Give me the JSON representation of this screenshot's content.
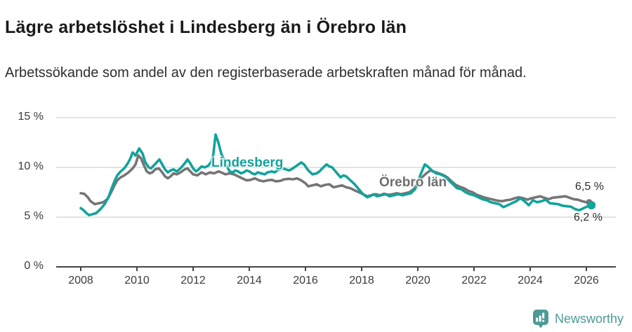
{
  "header": {
    "title": "Lägre arbetslöshet i Lindesberg än i Örebro län",
    "subtitle": "Arbetssökande som andel av den registerbaserade arbetskraften månad för månad."
  },
  "chart_data": {
    "type": "line",
    "title": "Lägre arbetslöshet i Lindesberg än i Örebro län",
    "xlabel": "",
    "ylabel": "",
    "unit": "%",
    "grid": true,
    "x_axis": {
      "ticks": [
        2008,
        2010,
        2012,
        2014,
        2016,
        2018,
        2020,
        2022,
        2024,
        2026
      ],
      "range": [
        2007.1,
        2027.0
      ]
    },
    "y_axis": {
      "ticks": [
        0,
        5,
        10,
        15
      ],
      "tick_labels": [
        "0 %",
        "5 %",
        "10 %",
        "15 %"
      ],
      "range": [
        0,
        15
      ]
    },
    "colors": {
      "lindesberg": "#12a39b",
      "orebro": "#757575",
      "grid": "#dadada",
      "axis": "#444444",
      "tick_text": "#3c3c3c"
    },
    "series": [
      {
        "name": "Örebro län",
        "color": "#757575",
        "label_color": "#6e6e6e",
        "end_label": "6,5 %",
        "end_value": 6.5,
        "points": [
          [
            2008.0,
            7.4
          ],
          [
            2008.12,
            7.35
          ],
          [
            2008.25,
            7.0
          ],
          [
            2008.35,
            6.6
          ],
          [
            2008.5,
            6.3
          ],
          [
            2008.65,
            6.4
          ],
          [
            2008.8,
            6.5
          ],
          [
            2008.95,
            6.8
          ],
          [
            2009.1,
            7.6
          ],
          [
            2009.2,
            8.2
          ],
          [
            2009.3,
            8.7
          ],
          [
            2009.42,
            9.0
          ],
          [
            2009.55,
            9.2
          ],
          [
            2009.7,
            9.5
          ],
          [
            2009.85,
            9.9
          ],
          [
            2009.95,
            10.3
          ],
          [
            2010.05,
            11.2
          ],
          [
            2010.15,
            10.9
          ],
          [
            2010.25,
            10.2
          ],
          [
            2010.35,
            9.6
          ],
          [
            2010.45,
            9.4
          ],
          [
            2010.55,
            9.5
          ],
          [
            2010.65,
            9.8
          ],
          [
            2010.78,
            9.9
          ],
          [
            2010.9,
            9.5
          ],
          [
            2011.0,
            9.1
          ],
          [
            2011.1,
            8.9
          ],
          [
            2011.2,
            9.1
          ],
          [
            2011.3,
            9.4
          ],
          [
            2011.42,
            9.3
          ],
          [
            2011.55,
            9.5
          ],
          [
            2011.7,
            9.8
          ],
          [
            2011.8,
            9.9
          ],
          [
            2011.9,
            9.6
          ],
          [
            2012.0,
            9.3
          ],
          [
            2012.15,
            9.2
          ],
          [
            2012.3,
            9.5
          ],
          [
            2012.45,
            9.3
          ],
          [
            2012.6,
            9.5
          ],
          [
            2012.75,
            9.4
          ],
          [
            2012.9,
            9.6
          ],
          [
            2013.0,
            9.5
          ],
          [
            2013.15,
            9.3
          ],
          [
            2013.3,
            9.4
          ],
          [
            2013.45,
            9.3
          ],
          [
            2013.6,
            9.1
          ],
          [
            2013.75,
            8.9
          ],
          [
            2013.9,
            8.7
          ],
          [
            2014.05,
            8.75
          ],
          [
            2014.2,
            8.9
          ],
          [
            2014.35,
            8.7
          ],
          [
            2014.5,
            8.6
          ],
          [
            2014.65,
            8.7
          ],
          [
            2014.8,
            8.75
          ],
          [
            2014.95,
            8.6
          ],
          [
            2015.1,
            8.65
          ],
          [
            2015.25,
            8.8
          ],
          [
            2015.4,
            8.85
          ],
          [
            2015.55,
            8.8
          ],
          [
            2015.7,
            8.9
          ],
          [
            2015.85,
            8.7
          ],
          [
            2016.0,
            8.4
          ],
          [
            2016.1,
            8.1
          ],
          [
            2016.25,
            8.2
          ],
          [
            2016.4,
            8.3
          ],
          [
            2016.55,
            8.1
          ],
          [
            2016.7,
            8.25
          ],
          [
            2016.85,
            8.3
          ],
          [
            2017.0,
            8.0
          ],
          [
            2017.15,
            8.1
          ],
          [
            2017.3,
            8.2
          ],
          [
            2017.45,
            8.0
          ],
          [
            2017.6,
            7.9
          ],
          [
            2017.75,
            7.7
          ],
          [
            2017.9,
            7.5
          ],
          [
            2018.05,
            7.3
          ],
          [
            2018.2,
            7.1
          ],
          [
            2018.35,
            7.2
          ],
          [
            2018.5,
            7.3
          ],
          [
            2018.65,
            7.2
          ],
          [
            2018.8,
            7.35
          ],
          [
            2018.95,
            7.25
          ],
          [
            2019.1,
            7.3
          ],
          [
            2019.25,
            7.4
          ],
          [
            2019.4,
            7.3
          ],
          [
            2019.55,
            7.4
          ],
          [
            2019.7,
            7.5
          ],
          [
            2019.85,
            7.8
          ],
          [
            2020.0,
            8.4
          ],
          [
            2020.15,
            9.0
          ],
          [
            2020.3,
            9.4
          ],
          [
            2020.45,
            9.7
          ],
          [
            2020.6,
            9.55
          ],
          [
            2020.75,
            9.4
          ],
          [
            2020.9,
            9.25
          ],
          [
            2021.05,
            9.0
          ],
          [
            2021.2,
            8.6
          ],
          [
            2021.35,
            8.25
          ],
          [
            2021.5,
            8.05
          ],
          [
            2021.65,
            7.9
          ],
          [
            2021.8,
            7.65
          ],
          [
            2021.95,
            7.5
          ],
          [
            2022.1,
            7.25
          ],
          [
            2022.25,
            7.1
          ],
          [
            2022.4,
            6.95
          ],
          [
            2022.55,
            6.85
          ],
          [
            2022.7,
            6.75
          ],
          [
            2022.85,
            6.65
          ],
          [
            2023.0,
            6.6
          ],
          [
            2023.15,
            6.7
          ],
          [
            2023.3,
            6.75
          ],
          [
            2023.45,
            6.9
          ],
          [
            2023.6,
            7.0
          ],
          [
            2023.75,
            6.9
          ],
          [
            2023.9,
            6.75
          ],
          [
            2024.05,
            6.9
          ],
          [
            2024.2,
            7.0
          ],
          [
            2024.35,
            7.1
          ],
          [
            2024.5,
            6.95
          ],
          [
            2024.65,
            6.8
          ],
          [
            2024.8,
            6.95
          ],
          [
            2024.95,
            7.0
          ],
          [
            2025.1,
            7.05
          ],
          [
            2025.25,
            7.1
          ],
          [
            2025.4,
            6.95
          ],
          [
            2025.55,
            6.8
          ],
          [
            2025.7,
            6.75
          ],
          [
            2025.85,
            6.6
          ],
          [
            2026.0,
            6.5
          ],
          [
            2026.1,
            6.5
          ]
        ]
      },
      {
        "name": "Lindesberg",
        "color": "#12a39b",
        "label_color": "#12a39b",
        "end_label": "6,2 %",
        "end_value": 6.2,
        "points": [
          [
            2008.0,
            5.9
          ],
          [
            2008.1,
            5.7
          ],
          [
            2008.2,
            5.4
          ],
          [
            2008.3,
            5.2
          ],
          [
            2008.42,
            5.3
          ],
          [
            2008.55,
            5.4
          ],
          [
            2008.7,
            5.8
          ],
          [
            2008.85,
            6.3
          ],
          [
            2009.0,
            7.1
          ],
          [
            2009.1,
            7.9
          ],
          [
            2009.2,
            8.6
          ],
          [
            2009.3,
            9.2
          ],
          [
            2009.42,
            9.6
          ],
          [
            2009.55,
            9.9
          ],
          [
            2009.65,
            10.3
          ],
          [
            2009.75,
            10.8
          ],
          [
            2009.85,
            11.5
          ],
          [
            2009.95,
            11.2
          ],
          [
            2010.08,
            11.9
          ],
          [
            2010.2,
            11.4
          ],
          [
            2010.3,
            10.5
          ],
          [
            2010.42,
            10.0
          ],
          [
            2010.5,
            9.9
          ],
          [
            2010.6,
            10.2
          ],
          [
            2010.7,
            10.5
          ],
          [
            2010.8,
            10.8
          ],
          [
            2010.9,
            10.3
          ],
          [
            2011.0,
            9.8
          ],
          [
            2011.1,
            9.5
          ],
          [
            2011.2,
            9.7
          ],
          [
            2011.3,
            9.8
          ],
          [
            2011.42,
            9.6
          ],
          [
            2011.55,
            9.9
          ],
          [
            2011.7,
            10.4
          ],
          [
            2011.8,
            10.8
          ],
          [
            2011.9,
            10.4
          ],
          [
            2012.0,
            9.9
          ],
          [
            2012.1,
            9.6
          ],
          [
            2012.2,
            9.8
          ],
          [
            2012.3,
            10.1
          ],
          [
            2012.42,
            10.0
          ],
          [
            2012.55,
            10.2
          ],
          [
            2012.65,
            10.6
          ],
          [
            2012.72,
            11.3
          ],
          [
            2012.8,
            13.3
          ],
          [
            2012.9,
            12.5
          ],
          [
            2013.0,
            11.4
          ],
          [
            2013.05,
            11.1
          ],
          [
            2013.15,
            10.4
          ],
          [
            2013.3,
            9.6
          ],
          [
            2013.42,
            9.5
          ],
          [
            2013.5,
            9.7
          ],
          [
            2013.6,
            9.6
          ],
          [
            2013.7,
            9.4
          ],
          [
            2013.8,
            9.5
          ],
          [
            2013.9,
            9.7
          ],
          [
            2014.0,
            9.6
          ],
          [
            2014.1,
            9.4
          ],
          [
            2014.2,
            9.3
          ],
          [
            2014.3,
            9.5
          ],
          [
            2014.42,
            9.4
          ],
          [
            2014.55,
            9.3
          ],
          [
            2014.65,
            9.5
          ],
          [
            2014.8,
            9.6
          ],
          [
            2014.9,
            9.5
          ],
          [
            2015.0,
            9.7
          ],
          [
            2015.1,
            9.8
          ],
          [
            2015.2,
            9.9
          ],
          [
            2015.3,
            9.8
          ],
          [
            2015.42,
            9.7
          ],
          [
            2015.55,
            9.9
          ],
          [
            2015.7,
            10.2
          ],
          [
            2015.85,
            10.5
          ],
          [
            2015.95,
            10.3
          ],
          [
            2016.1,
            9.7
          ],
          [
            2016.25,
            9.3
          ],
          [
            2016.4,
            9.4
          ],
          [
            2016.5,
            9.6
          ],
          [
            2016.6,
            9.9
          ],
          [
            2016.75,
            10.3
          ],
          [
            2016.85,
            10.1
          ],
          [
            2016.95,
            10.0
          ],
          [
            2017.1,
            9.5
          ],
          [
            2017.25,
            9.0
          ],
          [
            2017.35,
            9.2
          ],
          [
            2017.45,
            9.1
          ],
          [
            2017.6,
            8.7
          ],
          [
            2017.75,
            8.3
          ],
          [
            2017.9,
            7.8
          ],
          [
            2018.05,
            7.3
          ],
          [
            2018.2,
            7.0
          ],
          [
            2018.3,
            7.1
          ],
          [
            2018.42,
            7.3
          ],
          [
            2018.55,
            7.1
          ],
          [
            2018.7,
            7.2
          ],
          [
            2018.85,
            7.3
          ],
          [
            2019.0,
            7.1
          ],
          [
            2019.15,
            7.2
          ],
          [
            2019.3,
            7.3
          ],
          [
            2019.45,
            7.2
          ],
          [
            2019.6,
            7.3
          ],
          [
            2019.75,
            7.4
          ],
          [
            2019.9,
            7.8
          ],
          [
            2020.0,
            8.5
          ],
          [
            2020.1,
            9.3
          ],
          [
            2020.25,
            10.3
          ],
          [
            2020.35,
            10.1
          ],
          [
            2020.5,
            9.7
          ],
          [
            2020.65,
            9.4
          ],
          [
            2020.8,
            9.3
          ],
          [
            2020.95,
            9.1
          ],
          [
            2021.1,
            8.7
          ],
          [
            2021.25,
            8.3
          ],
          [
            2021.4,
            7.9
          ],
          [
            2021.55,
            7.8
          ],
          [
            2021.7,
            7.5
          ],
          [
            2021.85,
            7.3
          ],
          [
            2022.0,
            7.2
          ],
          [
            2022.15,
            7.0
          ],
          [
            2022.3,
            6.8
          ],
          [
            2022.45,
            6.7
          ],
          [
            2022.6,
            6.5
          ],
          [
            2022.75,
            6.4
          ],
          [
            2022.9,
            6.3
          ],
          [
            2023.05,
            6.0
          ],
          [
            2023.2,
            6.2
          ],
          [
            2023.35,
            6.4
          ],
          [
            2023.5,
            6.6
          ],
          [
            2023.65,
            6.9
          ],
          [
            2023.8,
            6.6
          ],
          [
            2023.95,
            6.2
          ],
          [
            2024.1,
            6.7
          ],
          [
            2024.25,
            6.5
          ],
          [
            2024.4,
            6.6
          ],
          [
            2024.55,
            6.75
          ],
          [
            2024.7,
            6.4
          ],
          [
            2024.85,
            6.35
          ],
          [
            2025.0,
            6.3
          ],
          [
            2025.15,
            6.15
          ],
          [
            2025.3,
            6.1
          ],
          [
            2025.45,
            6.05
          ],
          [
            2025.6,
            5.8
          ],
          [
            2025.75,
            5.7
          ],
          [
            2025.9,
            5.9
          ],
          [
            2026.05,
            6.1
          ],
          [
            2026.18,
            6.2
          ]
        ]
      }
    ]
  },
  "footer": {
    "brand": "Newsworthy",
    "brand_color": "#4d9b98"
  }
}
